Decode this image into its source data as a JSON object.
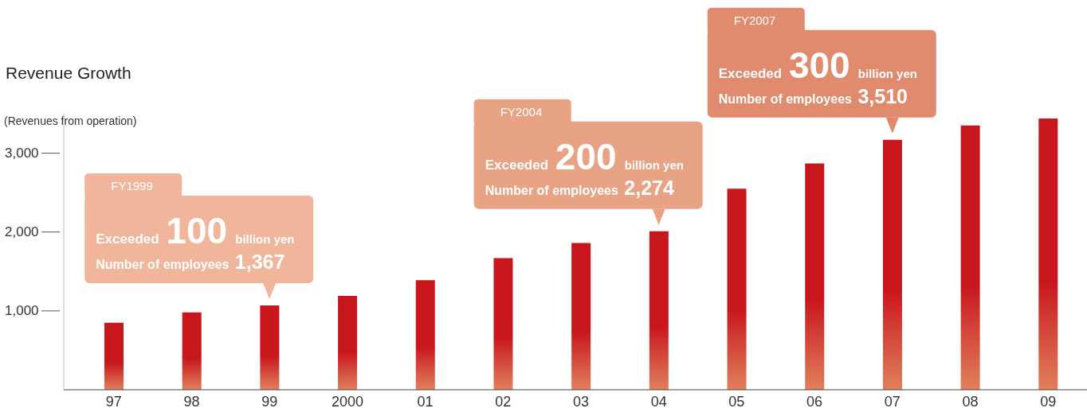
{
  "chart_data": {
    "type": "bar",
    "title": "Revenue Growth",
    "ylabel": "(Revenues from operation)",
    "categories": [
      "97",
      "98",
      "99",
      "2000",
      "01",
      "02",
      "03",
      "04",
      "05",
      "06",
      "07",
      "08",
      "09"
    ],
    "values": [
      850,
      980,
      1070,
      1190,
      1390,
      1670,
      1860,
      2010,
      2550,
      2870,
      3170,
      3350,
      3440
    ],
    "color": "#c8161d",
    "ylim": [
      0,
      3500
    ],
    "yticks": [
      {
        "value": 1000,
        "label": "1,000"
      },
      {
        "value": 2000,
        "label": "2,000"
      },
      {
        "value": 3000,
        "label": "3,000"
      }
    ],
    "grid": false,
    "legend": false,
    "annotations": [
      "FY1999",
      {
        "text": "Exceeded 100 billion yen",
        "x": "99",
        "y": 1070
      },
      {
        "text": "Number of employees 1,367",
        "x": "99",
        "y": 1070
      },
      "FY2004",
      {
        "text": "Exceeded 200 billion yen",
        "x": "04",
        "y": 2010
      },
      {
        "text": "Number of employees 2,274",
        "x": "04",
        "y": 2010
      },
      "FY2007",
      {
        "text": "Exceeded 300 billion yen",
        "x": "07",
        "y": 3170
      },
      {
        "text": "Number of employees 3,510",
        "x": "07",
        "y": 3170
      }
    ]
  }
}
